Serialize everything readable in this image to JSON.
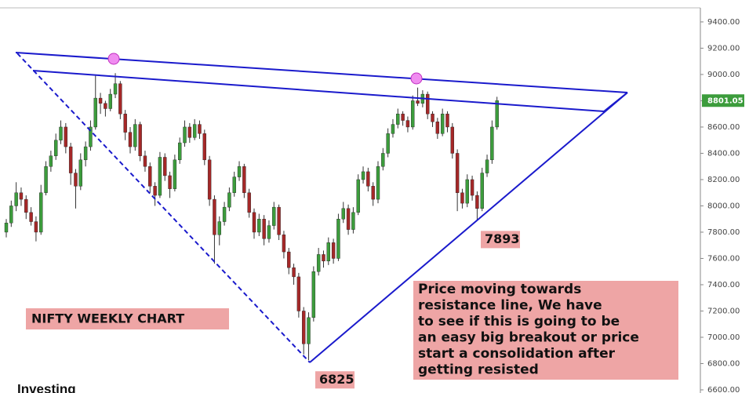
{
  "chart_data": {
    "type": "candlestick",
    "ylim": [
      6576,
      9507
    ],
    "yticks": [
      {
        "value": 6600,
        "label": "6600.00"
      },
      {
        "value": 6800,
        "label": "6800.00"
      },
      {
        "value": 7000,
        "label": "7000.00"
      },
      {
        "value": 7200,
        "label": "7200.00"
      },
      {
        "value": 7400,
        "label": "7400.00"
      },
      {
        "value": 7600,
        "label": "7600.00"
      },
      {
        "value": 7800,
        "label": "7800.00"
      },
      {
        "value": 8000,
        "label": "8000.00"
      },
      {
        "value": 8200,
        "label": "8200.00"
      },
      {
        "value": 8400,
        "label": "8400.00"
      },
      {
        "value": 8600,
        "label": "8600.00"
      },
      {
        "value": 8800,
        "label": "8800.00"
      },
      {
        "value": 9000,
        "label": "9000.00"
      },
      {
        "value": 9200,
        "label": "9200.00"
      },
      {
        "value": 9400,
        "label": "9400.00"
      }
    ],
    "up_color": "#3c9c3c",
    "down_color": "#a52828",
    "last_price": 8801.05,
    "open": [
      7800,
      7870,
      8000,
      8100,
      8050,
      7950,
      7880,
      7800,
      8100,
      8300,
      8380,
      8500,
      8600,
      8450,
      8250,
      8150,
      8350,
      8450,
      8600,
      8820,
      8780,
      8740,
      8850,
      8930,
      8700,
      8560,
      8450,
      8620,
      8380,
      8300,
      8150,
      8080,
      8370,
      8230,
      8130,
      8350,
      8480,
      8600,
      8520,
      8620,
      8550,
      8350,
      8050,
      7780,
      7880,
      7990,
      8100,
      8220,
      8300,
      8100,
      7950,
      7800,
      7900,
      7750,
      7850,
      7990,
      7780,
      7650,
      7530,
      7460,
      7200,
      6950,
      7150,
      7500,
      7630,
      7580,
      7720,
      7600,
      7900,
      7980,
      7820,
      7950,
      8200,
      8260,
      8150,
      8050,
      8300,
      8400,
      8550,
      8620,
      8700,
      8650,
      8600,
      8800,
      8780,
      8850,
      8700,
      8640,
      8550,
      8700,
      8600,
      8400,
      8100,
      8020,
      8200,
      8080,
      7980,
      8250,
      8350,
      8600
    ],
    "high": [
      7900,
      8040,
      8180,
      8140,
      8080,
      7990,
      7920,
      8160,
      8340,
      8420,
      8550,
      8650,
      8630,
      8480,
      8280,
      8400,
      8490,
      8650,
      8990,
      8860,
      8800,
      8890,
      9010,
      8950,
      8730,
      8600,
      8660,
      8640,
      8420,
      8330,
      8180,
      8410,
      8400,
      8260,
      8390,
      8520,
      8650,
      8630,
      8660,
      8650,
      8580,
      8380,
      8080,
      7920,
      8030,
      8140,
      8260,
      8340,
      8320,
      8130,
      7980,
      7940,
      7930,
      7890,
      8030,
      8010,
      7810,
      7680,
      7560,
      7490,
      7230,
      7190,
      7540,
      7680,
      7660,
      7760,
      7750,
      7940,
      8030,
      8010,
      7990,
      8240,
      8300,
      8290,
      8180,
      8340,
      8440,
      8590,
      8660,
      8740,
      8720,
      8680,
      8840,
      8900,
      8880,
      8870,
      8720,
      8670,
      8740,
      8720,
      8630,
      8430,
      8130,
      8240,
      8230,
      8110,
      8290,
      8390,
      8650,
      8830
    ],
    "low": [
      7760,
      7840,
      7960,
      8000,
      7900,
      7850,
      7730,
      7780,
      8080,
      8260,
      8350,
      8470,
      8400,
      8160,
      7980,
      8120,
      8300,
      8420,
      8580,
      8700,
      8680,
      8720,
      8820,
      8660,
      8500,
      8400,
      8420,
      8340,
      8260,
      8100,
      8000,
      8060,
      8190,
      8060,
      8110,
      8320,
      8450,
      8480,
      8500,
      8510,
      8310,
      8000,
      7560,
      7700,
      7850,
      7960,
      8070,
      8190,
      8060,
      7910,
      7750,
      7770,
      7700,
      7720,
      7820,
      7740,
      7600,
      7480,
      7400,
      7150,
      6870,
      6825,
      7120,
      7470,
      7530,
      7550,
      7560,
      7580,
      7870,
      7780,
      7790,
      7930,
      8170,
      8110,
      8000,
      8020,
      8270,
      8370,
      8520,
      8590,
      8610,
      8560,
      8580,
      8760,
      8750,
      8660,
      8600,
      8510,
      8530,
      8560,
      8360,
      7960,
      7980,
      7990,
      8040,
      7893,
      7960,
      8220,
      8320,
      8580
    ],
    "close": [
      7870,
      8000,
      8100,
      8050,
      7950,
      7880,
      7800,
      8100,
      8300,
      8380,
      8500,
      8600,
      8450,
      8250,
      8150,
      8350,
      8450,
      8600,
      8820,
      8780,
      8740,
      8850,
      8930,
      8700,
      8560,
      8450,
      8620,
      8380,
      8300,
      8150,
      8080,
      8370,
      8230,
      8130,
      8350,
      8480,
      8600,
      8520,
      8620,
      8550,
      8350,
      8050,
      7780,
      7880,
      7990,
      8100,
      8220,
      8300,
      8100,
      7950,
      7800,
      7900,
      7750,
      7850,
      7990,
      7780,
      7650,
      7530,
      7460,
      7200,
      6950,
      7150,
      7500,
      7630,
      7580,
      7720,
      7600,
      7900,
      7980,
      7820,
      7950,
      8200,
      8260,
      8150,
      8050,
      8300,
      8400,
      8550,
      8620,
      8700,
      8650,
      8600,
      8800,
      8780,
      8850,
      8700,
      8640,
      8550,
      8700,
      8600,
      8400,
      8100,
      8020,
      8200,
      8080,
      7980,
      8250,
      8350,
      8600,
      8801.05
    ],
    "annotations": [
      {
        "text": "7893",
        "value": 7893
      },
      {
        "text": "6825",
        "value": 6825
      }
    ],
    "title_label": "NIFTY WEEKLY CHART",
    "comment_lines": [
      "Price moving towards",
      "resistance line, We have",
      "to see if this is going to be",
      "an easy big breakout or price",
      "start a consolidation after",
      "getting resisted"
    ],
    "watermark": "Investing"
  }
}
